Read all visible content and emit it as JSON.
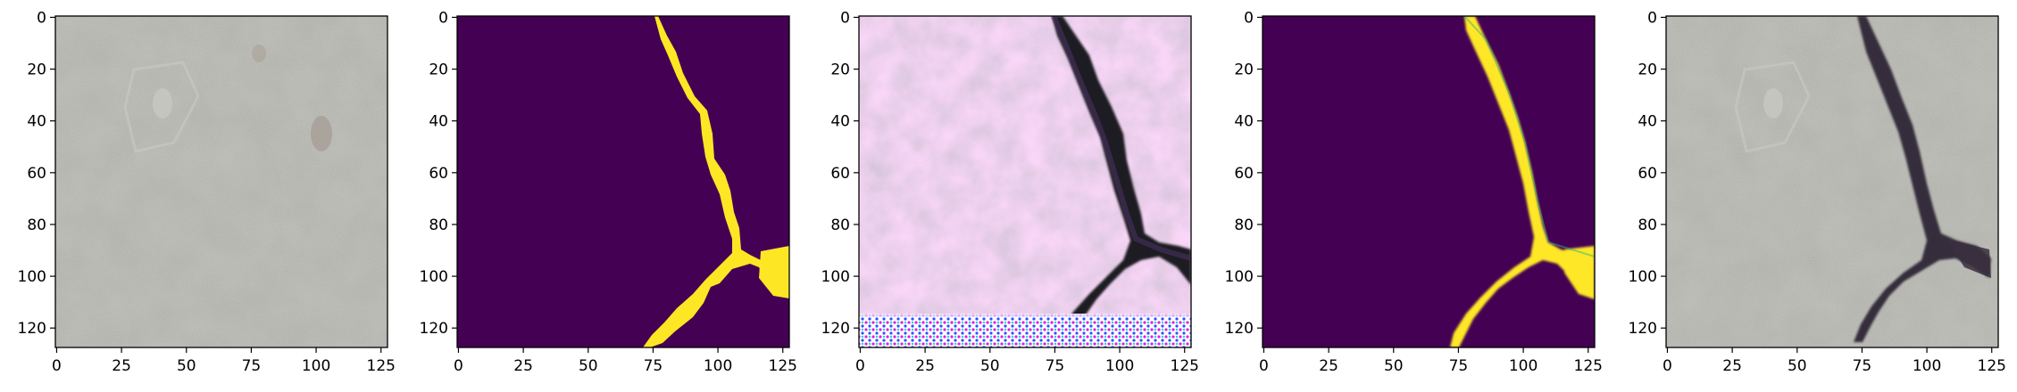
{
  "figure": {
    "panels": [
      {
        "id": "input-image",
        "kind": "concrete-photo",
        "xticks": [
          "0",
          "25",
          "50",
          "75",
          "100",
          "125"
        ],
        "yticks": [
          "0",
          "20",
          "40",
          "60",
          "80",
          "100",
          "120"
        ]
      },
      {
        "id": "ground-truth-mask",
        "kind": "mask-hard",
        "xticks": [
          "0",
          "25",
          "50",
          "75",
          "100",
          "125"
        ],
        "yticks": [
          "0",
          "20",
          "40",
          "60",
          "80",
          "100",
          "120"
        ]
      },
      {
        "id": "generated-image",
        "kind": "generated-crack",
        "xticks": [
          "0",
          "25",
          "50",
          "75",
          "100",
          "125"
        ],
        "yticks": [
          "0",
          "20",
          "40",
          "60",
          "80",
          "100",
          "120"
        ]
      },
      {
        "id": "predicted-mask",
        "kind": "mask-soft",
        "xticks": [
          "0",
          "25",
          "50",
          "75",
          "100",
          "125"
        ],
        "yticks": [
          "0",
          "20",
          "40",
          "60",
          "80",
          "100",
          "120"
        ]
      },
      {
        "id": "overlay-image",
        "kind": "concrete-with-crack",
        "xticks": [
          "0",
          "25",
          "50",
          "75",
          "100",
          "125"
        ],
        "yticks": [
          "0",
          "20",
          "40",
          "60",
          "80",
          "100",
          "120"
        ]
      }
    ],
    "colors": {
      "mask_background": "#440154",
      "mask_foreground": "#fde725",
      "concrete": "#a9aaa3",
      "crack": "#2a2430"
    }
  }
}
